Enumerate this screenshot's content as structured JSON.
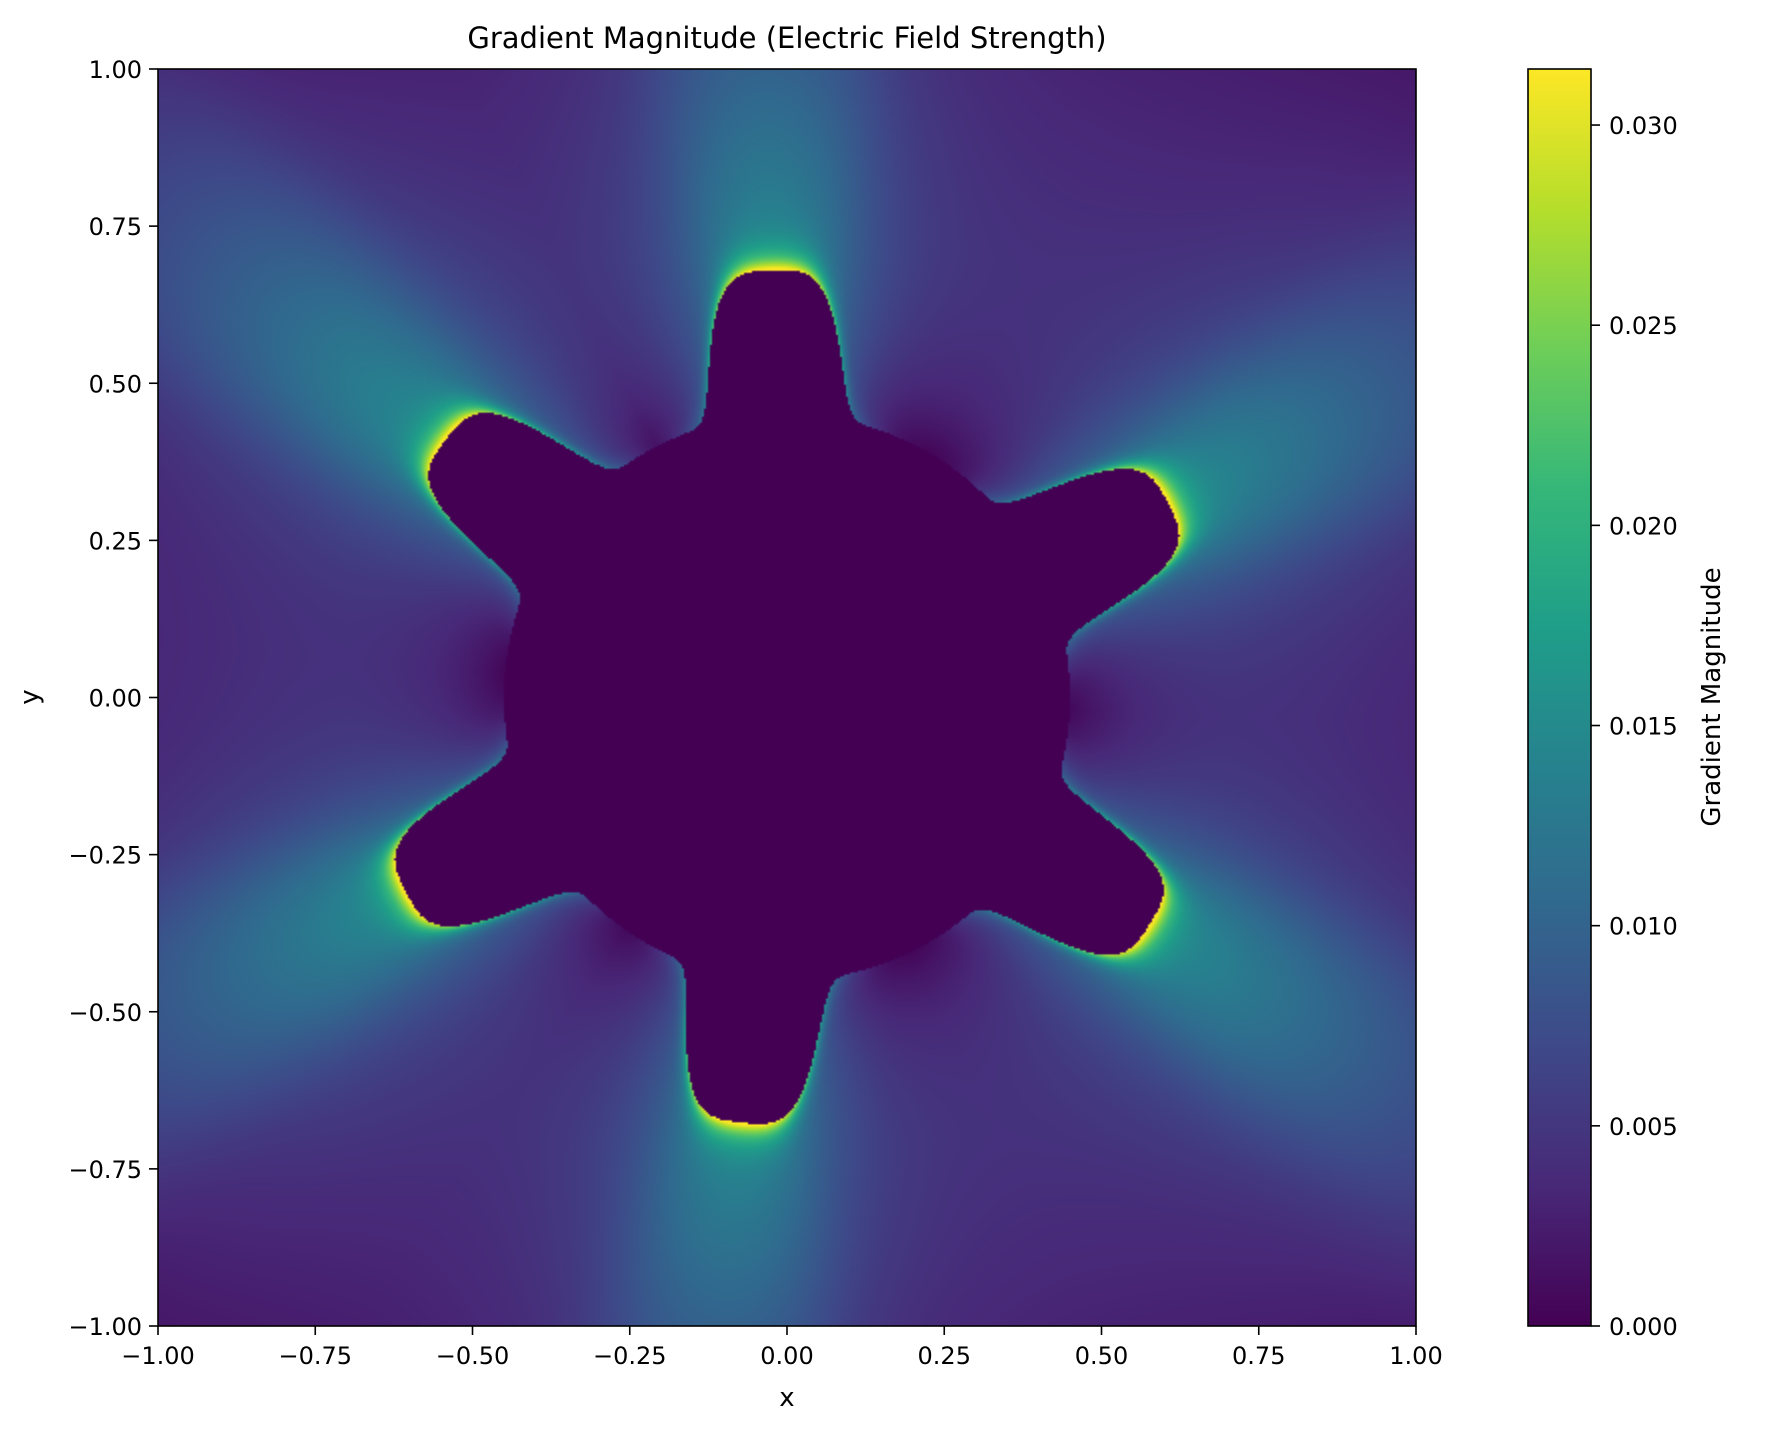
{
  "chart_data": {
    "type": "heatmap",
    "title": "Gradient Magnitude (Electric Field Strength)",
    "xlabel": "x",
    "ylabel": "y",
    "xlim": [
      -1.0,
      1.0
    ],
    "ylim": [
      -1.0,
      1.0
    ],
    "xticks": [
      -1.0,
      -0.75,
      -0.5,
      -0.25,
      0.0,
      0.25,
      0.5,
      0.75,
      1.0
    ],
    "yticks": [
      -1.0,
      -0.75,
      -0.5,
      -0.25,
      0.0,
      0.25,
      0.5,
      0.75,
      1.0
    ],
    "xtick_labels": [
      "−1.00",
      "−0.75",
      "−0.50",
      "−0.25",
      "0.00",
      "0.25",
      "0.50",
      "0.75",
      "1.00"
    ],
    "ytick_labels": [
      "−1.00",
      "−0.75",
      "−0.50",
      "−0.25",
      "0.00",
      "0.25",
      "0.50",
      "0.75",
      "1.00"
    ],
    "colormap": "viridis",
    "colorbar": {
      "label": "Gradient Magnitude",
      "range": [
        0.0,
        0.0314
      ],
      "ticks": [
        0.0,
        0.005,
        0.01,
        0.015,
        0.02,
        0.025,
        0.03
      ],
      "tick_labels": [
        "0.000",
        "0.005",
        "0.010",
        "0.015",
        "0.020",
        "0.025",
        "0.030"
      ]
    },
    "conductor": {
      "description_note": "",
      "lobes": 6,
      "lobe_angles_deg": [
        92,
        143,
        207,
        264,
        328,
        27
      ],
      "body_radius": 0.45,
      "lobe_radius": 0.68,
      "interior_value": 0.0,
      "edge_peak_value": 0.0314
    },
    "grid": false
  },
  "colors": {
    "viridis": [
      "#440154",
      "#482878",
      "#3e4989",
      "#31688e",
      "#26828e",
      "#1f9e89",
      "#35b779",
      "#6ece58",
      "#b5de2b",
      "#fde725"
    ]
  }
}
